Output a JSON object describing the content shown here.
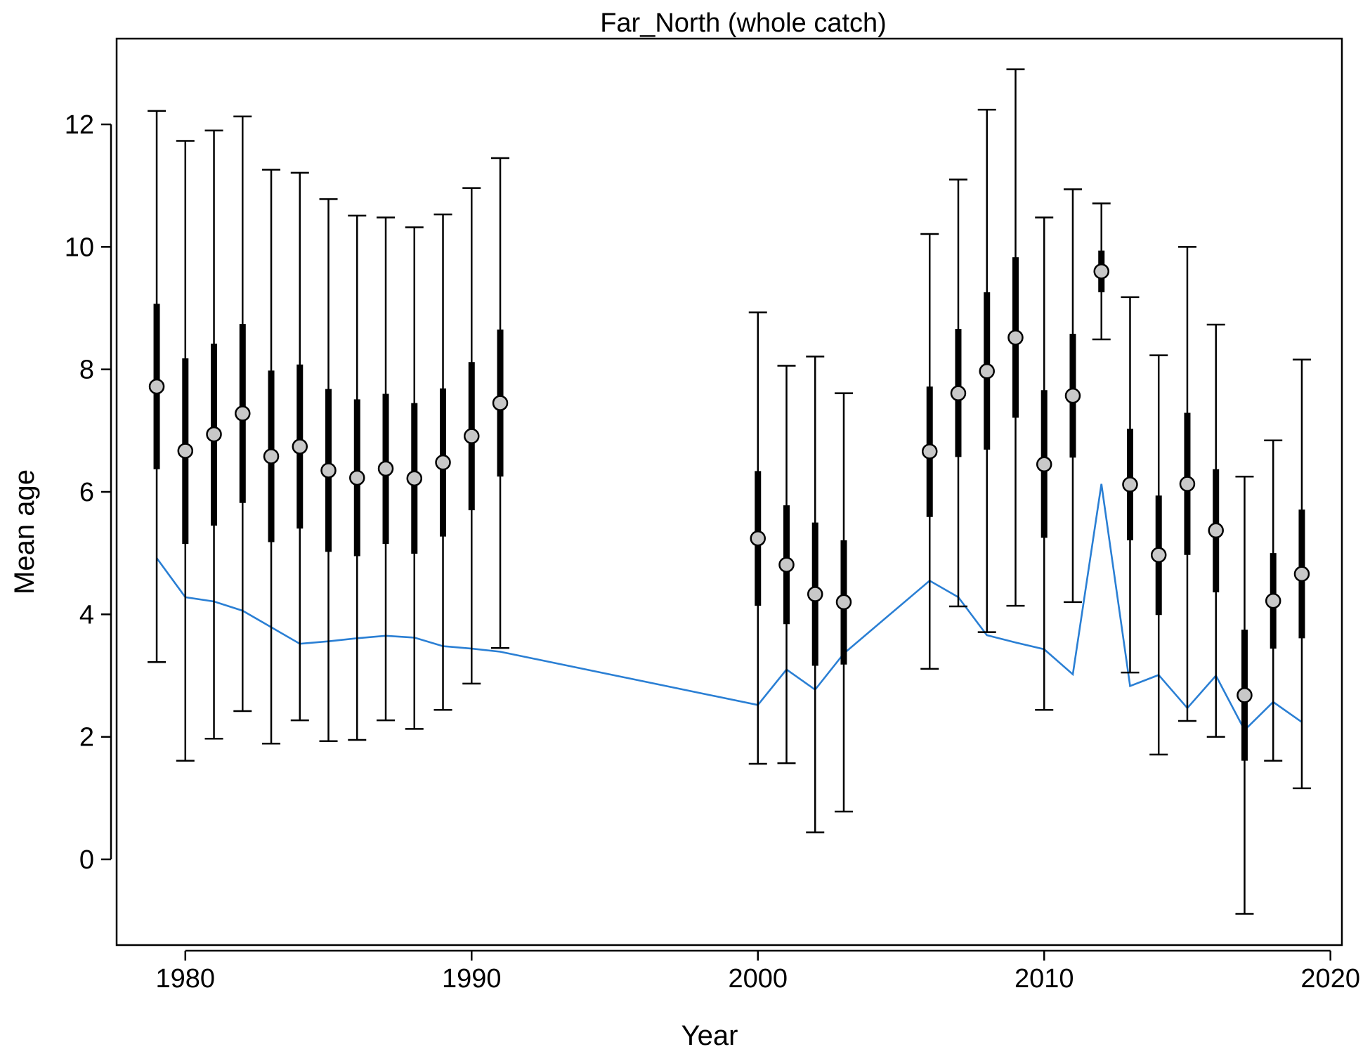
{
  "chart_data": {
    "type": "errorbar-line",
    "title": "Far_North (whole catch)",
    "xlabel": "Year",
    "ylabel": "Mean age",
    "xlim": [
      1977.6,
      2020.4
    ],
    "ylim": [
      -1.4,
      13.4
    ],
    "xticks": [
      1980,
      1990,
      2000,
      2010,
      2020
    ],
    "yticks": [
      0,
      2,
      4,
      6,
      8,
      10,
      12
    ],
    "grid": false,
    "legend": "none",
    "colors": {
      "whisker": "#000000",
      "point_fill": "#c8c8c8",
      "line": "#2a7fd4"
    },
    "series": [
      {
        "values": [
          {
            "year": 1979,
            "mean": 7.72,
            "box_low": 6.37,
            "box_high": 9.07,
            "whisk_low": 3.22,
            "whisk_high": 12.22
          },
          {
            "year": 1980,
            "mean": 6.67,
            "box_low": 5.15,
            "box_high": 8.18,
            "whisk_low": 1.61,
            "whisk_high": 11.73
          },
          {
            "year": 1981,
            "mean": 6.94,
            "box_low": 5.45,
            "box_high": 8.42,
            "whisk_low": 1.97,
            "whisk_high": 11.9
          },
          {
            "year": 1982,
            "mean": 7.28,
            "box_low": 5.82,
            "box_high": 8.74,
            "whisk_low": 2.42,
            "whisk_high": 12.13
          },
          {
            "year": 1983,
            "mean": 6.58,
            "box_low": 5.18,
            "box_high": 7.98,
            "whisk_low": 1.89,
            "whisk_high": 11.26
          },
          {
            "year": 1984,
            "mean": 6.74,
            "box_low": 5.4,
            "box_high": 8.08,
            "whisk_low": 2.27,
            "whisk_high": 11.21
          },
          {
            "year": 1985,
            "mean": 6.35,
            "box_low": 5.02,
            "box_high": 7.68,
            "whisk_low": 1.93,
            "whisk_high": 10.78
          },
          {
            "year": 1986,
            "mean": 6.23,
            "box_low": 4.95,
            "box_high": 7.51,
            "whisk_low": 1.95,
            "whisk_high": 10.51
          },
          {
            "year": 1987,
            "mean": 6.38,
            "box_low": 5.15,
            "box_high": 7.6,
            "whisk_low": 2.27,
            "whisk_high": 10.48
          },
          {
            "year": 1988,
            "mean": 6.22,
            "box_low": 4.99,
            "box_high": 7.45,
            "whisk_low": 2.13,
            "whisk_high": 10.32
          },
          {
            "year": 1989,
            "mean": 6.48,
            "box_low": 5.27,
            "box_high": 7.69,
            "whisk_low": 2.44,
            "whisk_high": 10.53
          },
          {
            "year": 1990,
            "mean": 6.91,
            "box_low": 5.7,
            "box_high": 8.12,
            "whisk_low": 2.87,
            "whisk_high": 10.96
          },
          {
            "year": 1991,
            "mean": 7.45,
            "box_low": 6.25,
            "box_high": 8.65,
            "whisk_low": 3.45,
            "whisk_high": 11.45
          },
          {
            "year": 2000,
            "mean": 5.24,
            "box_low": 4.14,
            "box_high": 6.34,
            "whisk_low": 1.56,
            "whisk_high": 8.93
          },
          {
            "year": 2001,
            "mean": 4.81,
            "box_low": 3.84,
            "box_high": 5.78,
            "whisk_low": 1.57,
            "whisk_high": 8.06
          },
          {
            "year": 2002,
            "mean": 4.33,
            "box_low": 3.16,
            "box_high": 5.5,
            "whisk_low": 0.44,
            "whisk_high": 8.21
          },
          {
            "year": 2003,
            "mean": 4.2,
            "box_low": 3.18,
            "box_high": 5.21,
            "whisk_low": 0.78,
            "whisk_high": 7.61
          },
          {
            "year": 2006,
            "mean": 6.66,
            "box_low": 5.59,
            "box_high": 7.72,
            "whisk_low": 3.11,
            "whisk_high": 10.21
          },
          {
            "year": 2007,
            "mean": 7.61,
            "box_low": 6.57,
            "box_high": 8.66,
            "whisk_low": 4.13,
            "whisk_high": 11.1
          },
          {
            "year": 2008,
            "mean": 7.97,
            "box_low": 6.69,
            "box_high": 9.26,
            "whisk_low": 3.71,
            "whisk_high": 12.24
          },
          {
            "year": 2009,
            "mean": 8.52,
            "box_low": 7.21,
            "box_high": 9.83,
            "whisk_low": 4.14,
            "whisk_high": 12.9
          },
          {
            "year": 2010,
            "mean": 6.45,
            "box_low": 5.25,
            "box_high": 7.66,
            "whisk_low": 2.44,
            "whisk_high": 10.48
          },
          {
            "year": 2011,
            "mean": 7.57,
            "box_low": 6.56,
            "box_high": 8.58,
            "whisk_low": 4.2,
            "whisk_high": 10.94
          },
          {
            "year": 2012,
            "mean": 9.6,
            "box_low": 9.26,
            "box_high": 9.94,
            "whisk_low": 8.49,
            "whisk_high": 10.71
          },
          {
            "year": 2013,
            "mean": 6.12,
            "box_low": 5.21,
            "box_high": 7.03,
            "whisk_low": 3.05,
            "whisk_high": 9.18
          },
          {
            "year": 2014,
            "mean": 4.97,
            "box_low": 3.99,
            "box_high": 5.94,
            "whisk_low": 1.71,
            "whisk_high": 8.23
          },
          {
            "year": 2015,
            "mean": 6.13,
            "box_low": 4.97,
            "box_high": 7.29,
            "whisk_low": 2.26,
            "whisk_high": 10.0
          },
          {
            "year": 2016,
            "mean": 5.37,
            "box_low": 4.36,
            "box_high": 6.37,
            "whisk_low": 2.0,
            "whisk_high": 8.73
          },
          {
            "year": 2017,
            "mean": 2.68,
            "box_low": 1.61,
            "box_high": 3.75,
            "whisk_low": -0.89,
            "whisk_high": 6.25
          },
          {
            "year": 2018,
            "mean": 4.22,
            "box_low": 3.44,
            "box_high": 5.0,
            "whisk_low": 1.61,
            "whisk_high": 6.84
          },
          {
            "year": 2019,
            "mean": 4.66,
            "box_low": 3.61,
            "box_high": 5.71,
            "whisk_low": 1.16,
            "whisk_high": 8.16
          }
        ]
      },
      {
        "type": "line",
        "x": [
          1979,
          1980,
          1981,
          1982,
          1983,
          1984,
          1985,
          1986,
          1987,
          1988,
          1989,
          1990,
          1991,
          2000,
          2001,
          2002,
          2003,
          2006,
          2007,
          2008,
          2009,
          2010,
          2011,
          2012,
          2013,
          2014,
          2015,
          2016,
          2017,
          2018,
          2019
        ],
        "y": [
          4.92,
          4.28,
          4.21,
          4.06,
          3.79,
          3.52,
          3.56,
          3.61,
          3.65,
          3.62,
          3.48,
          3.44,
          3.39,
          2.52,
          3.1,
          2.77,
          3.36,
          4.55,
          4.28,
          3.66,
          3.54,
          3.43,
          3.02,
          6.13,
          2.83,
          3.01,
          2.47,
          3.0,
          2.11,
          2.57,
          2.24
        ]
      }
    ]
  }
}
